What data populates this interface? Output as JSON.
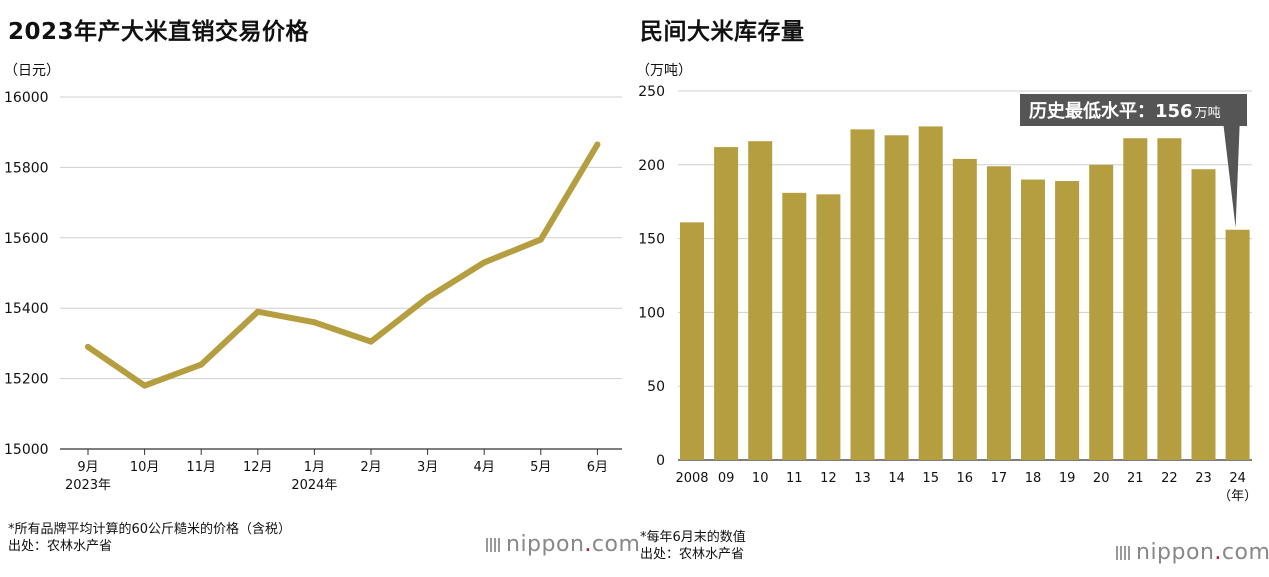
{
  "left": {
    "title": "2023年产大米直销交易价格",
    "unit": "（日元）",
    "footnote": "*所有品牌平均计算的60公斤糙米的价格（含税）",
    "source": "出处：农林水产省",
    "logo_name": "nippon",
    "logo_dot": ".",
    "logo_tld": "com"
  },
  "right": {
    "title": "民间大米库存量",
    "unit": "（万吨）",
    "footnote": "*每年6月末的数值",
    "source": "出处：农林水产省",
    "logo_name": "nippon",
    "logo_dot": ".",
    "logo_tld": "com",
    "callout_main": "历史最低水平：156",
    "callout_unit": "万吨"
  },
  "chart_data": [
    {
      "type": "line",
      "title": "2023年产大米直销交易价格",
      "ylabel": "（日元）",
      "ylim": [
        15000,
        16000
      ],
      "yticks": [
        15000,
        15200,
        15400,
        15600,
        15800,
        16000
      ],
      "x": [
        "9月",
        "10月",
        "11月",
        "12月",
        "1月",
        "2月",
        "3月",
        "4月",
        "5月",
        "6月"
      ],
      "x_sublabels": {
        "0": "2023年",
        "4": "2024年"
      },
      "series": [
        {
          "values": [
            15290,
            15180,
            15240,
            15390,
            15360,
            15305,
            15430,
            15530,
            15595,
            15865
          ]
        }
      ],
      "color": "#b59e3f",
      "grid": true
    },
    {
      "type": "bar",
      "title": "民间大米库存量",
      "ylabel": "（万吨）",
      "ylim": [
        0,
        250
      ],
      "yticks": [
        0,
        50,
        100,
        150,
        200,
        250
      ],
      "categories": [
        "2008",
        "09",
        "10",
        "11",
        "12",
        "13",
        "14",
        "15",
        "16",
        "17",
        "18",
        "19",
        "20",
        "21",
        "22",
        "23",
        "24"
      ],
      "x_last_sublabel": "（年）",
      "values": [
        161,
        212,
        216,
        181,
        180,
        224,
        220,
        226,
        204,
        199,
        190,
        189,
        200,
        218,
        218,
        197,
        156
      ],
      "color": "#b59e3f",
      "grid": true,
      "annotation": {
        "category": "24",
        "text": "历史最低水平：156万吨"
      }
    }
  ]
}
